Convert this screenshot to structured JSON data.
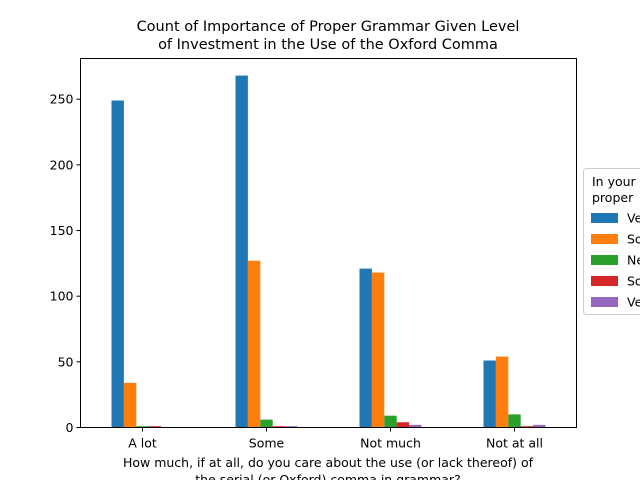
{
  "chart_data": {
    "type": "bar",
    "title_line1": "Count of Importance of Proper Grammar Given Level",
    "title_line2": "of Investment in the Use of the Oxford Comma",
    "xlabel_line1": "How much, if at all, do you care about the use (or lack thereof) of",
    "xlabel_line2": "the serial (or Oxford) comma in grammar?",
    "ylabel": "",
    "categories": [
      "A lot",
      "Some",
      "Not much",
      "Not at all"
    ],
    "ylim": [
      0,
      281
    ],
    "yticks": [
      0,
      50,
      100,
      150,
      200,
      250
    ],
    "legend_title_line1": "In your",
    "legend_title_line2": "proper",
    "legend_position": "right (clipped)",
    "series": [
      {
        "name": "Ve",
        "color": "#1f77b4",
        "values": [
          249,
          268,
          121,
          51
        ]
      },
      {
        "name": "So",
        "color": "#ff7f0e",
        "values": [
          34,
          127,
          118,
          54
        ]
      },
      {
        "name": "Ne",
        "color": "#2ca02c",
        "values": [
          1,
          6,
          9,
          10
        ]
      },
      {
        "name": "So",
        "color": "#d62728",
        "values": [
          1,
          1,
          4,
          1
        ]
      },
      {
        "name": "Ve",
        "color": "#9467bd",
        "values": [
          0,
          1,
          2,
          2
        ]
      }
    ]
  }
}
